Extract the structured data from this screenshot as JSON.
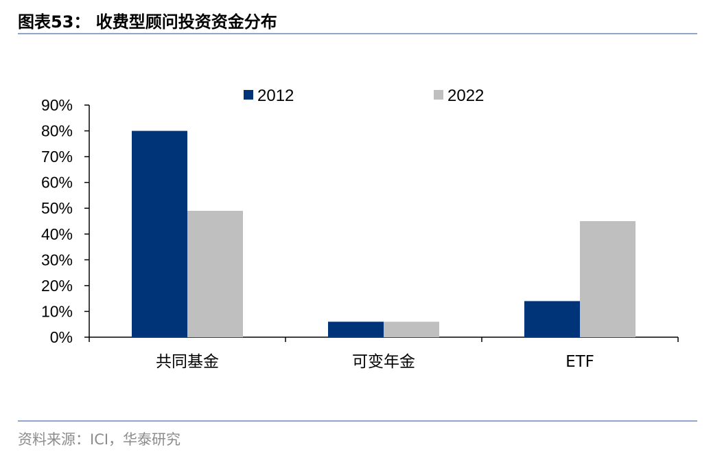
{
  "header": {
    "title": "图表53： 收费型顾问投资资金分布"
  },
  "footer": {
    "source": "资料来源：ICI，华泰研究"
  },
  "colors": {
    "accent_rule": "#8fa6c8",
    "series_2012": "#003478",
    "series_2022": "#bfbfbf"
  },
  "chart_data": {
    "type": "bar",
    "categories": [
      "共同基金",
      "可变年金",
      "ETF"
    ],
    "series": [
      {
        "name": "2012",
        "values": [
          80,
          6,
          14
        ],
        "color": "#003478"
      },
      {
        "name": "2022",
        "values": [
          49,
          6,
          45
        ],
        "color": "#bfbfbf"
      }
    ],
    "y_ticks": [
      "0%",
      "10%",
      "20%",
      "30%",
      "40%",
      "50%",
      "60%",
      "70%",
      "80%",
      "90%"
    ],
    "ylim": [
      0,
      90
    ],
    "y_unit": "%",
    "legend": "top-center",
    "grid": false
  }
}
